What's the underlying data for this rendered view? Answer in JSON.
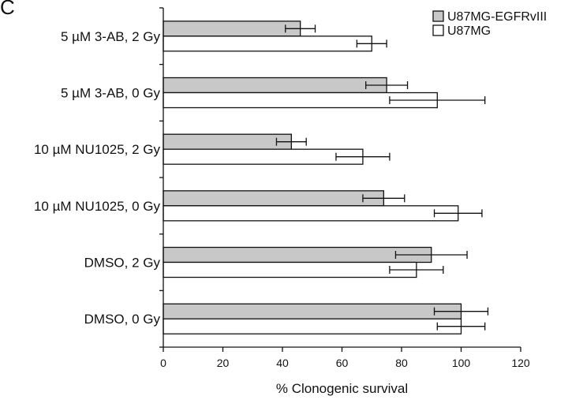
{
  "panel_label": "C",
  "chart_data": {
    "type": "bar",
    "orientation": "horizontal",
    "categories": [
      "5 µM 3-AB, 2 Gy",
      "5 µM 3-AB, 0 Gy",
      "10 µM NU1025, 2 Gy",
      "10 µM NU1025, 0 Gy",
      "DMSO, 2 Gy",
      "DMSO, 0 Gy"
    ],
    "series": [
      {
        "name": "U87MG-EGFRvIII",
        "color": "#c8c8c8",
        "values": [
          46,
          75,
          43,
          74,
          90,
          100
        ],
        "errors": [
          5,
          7,
          5,
          7,
          12,
          9
        ]
      },
      {
        "name": "U87MG",
        "color": "#ffffff",
        "values": [
          70,
          92,
          67,
          99,
          85,
          100
        ],
        "errors": [
          5,
          16,
          9,
          8,
          9,
          8
        ]
      }
    ],
    "xlabel": "% Clonogenic survival",
    "ylabel": "",
    "xlim": [
      0,
      120
    ],
    "xticks": [
      "0",
      "20",
      "40",
      "60",
      "80",
      "100",
      "120"
    ],
    "legend_position": "top-right",
    "grid": false
  }
}
